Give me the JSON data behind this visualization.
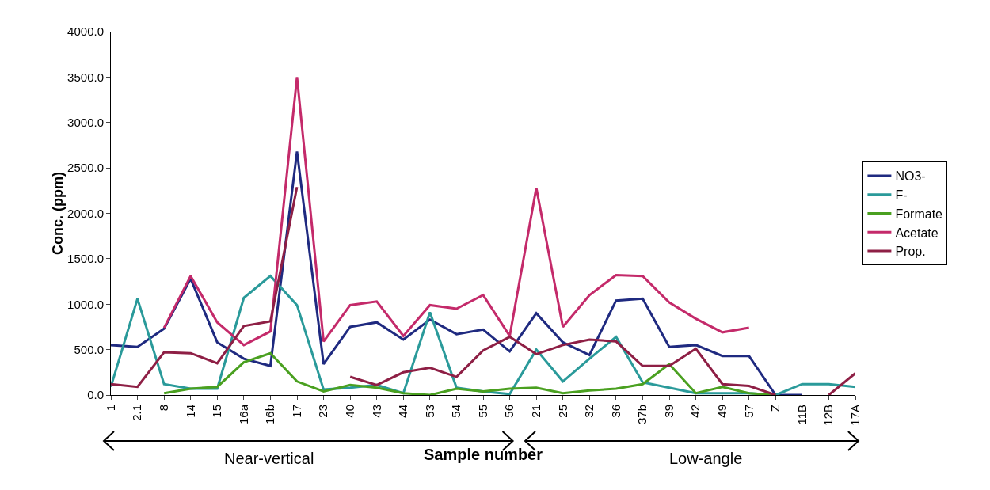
{
  "chart_data": {
    "type": "line",
    "xlabel": "Sample number",
    "ylabel": "Conc. (ppm)",
    "categories": [
      "1",
      "2.1",
      "8",
      "14",
      "15",
      "16a",
      "16b",
      "17",
      "23",
      "40",
      "43",
      "44",
      "53",
      "54",
      "55",
      "56",
      "21",
      "25",
      "32",
      "36",
      "37b",
      "39",
      "42",
      "49",
      "57",
      "Z",
      "11B",
      "12B",
      "17A"
    ],
    "series": [
      {
        "name": "NO3-",
        "color": "#1f2a80",
        "values": [
          550,
          530,
          730,
          1280,
          580,
          400,
          320,
          2680,
          340,
          750,
          800,
          610,
          830,
          670,
          720,
          480,
          900,
          580,
          440,
          1040,
          1060,
          530,
          550,
          430,
          430,
          0,
          0,
          null,
          null
        ]
      },
      {
        "name": "F-",
        "color": "#2a9a9a",
        "values": [
          90,
          1060,
          120,
          70,
          70,
          1070,
          1310,
          990,
          60,
          80,
          110,
          20,
          910,
          80,
          40,
          10,
          500,
          150,
          400,
          640,
          140,
          80,
          20,
          20,
          20,
          0,
          120,
          120,
          90
        ]
      },
      {
        "name": "Formate",
        "color": "#4aa020",
        "values": [
          null,
          null,
          20,
          70,
          90,
          360,
          460,
          150,
          40,
          110,
          80,
          20,
          0,
          70,
          40,
          70,
          80,
          20,
          50,
          70,
          120,
          340,
          20,
          90,
          20,
          0,
          null,
          null,
          null
        ]
      },
      {
        "name": "Acetate",
        "color": "#c42a6a",
        "values": [
          null,
          null,
          740,
          1310,
          800,
          550,
          700,
          3500,
          590,
          990,
          1030,
          650,
          990,
          950,
          1100,
          650,
          2280,
          750,
          1100,
          1320,
          1310,
          1020,
          840,
          690,
          740,
          null,
          null,
          null,
          null
        ]
      },
      {
        "name": "Prop.",
        "color": "#8e1f45",
        "values": [
          120,
          90,
          470,
          460,
          350,
          760,
          810,
          2290,
          null,
          200,
          110,
          250,
          300,
          200,
          490,
          640,
          450,
          550,
          610,
          590,
          320,
          320,
          510,
          120,
          100,
          0,
          null,
          0,
          240
        ]
      }
    ],
    "ylim": [
      0,
      4000
    ],
    "yticks": [
      {
        "value": 0,
        "label": "0.0"
      },
      {
        "value": 500,
        "label": "500.0"
      },
      {
        "value": 1000,
        "label": "1000.0"
      },
      {
        "value": 1500,
        "label": "1500.0"
      },
      {
        "value": 2000,
        "label": "2000.0"
      },
      {
        "value": 2500,
        "label": "2500.0"
      },
      {
        "value": 3000,
        "label": "3000.0"
      },
      {
        "value": 3500,
        "label": "3500.0"
      },
      {
        "value": 4000,
        "label": "4000.0"
      }
    ],
    "grid": false,
    "legend": "right",
    "marker": "none",
    "line_style": "solid",
    "annotations": [
      "Near-vertical",
      "Low-angle"
    ]
  }
}
